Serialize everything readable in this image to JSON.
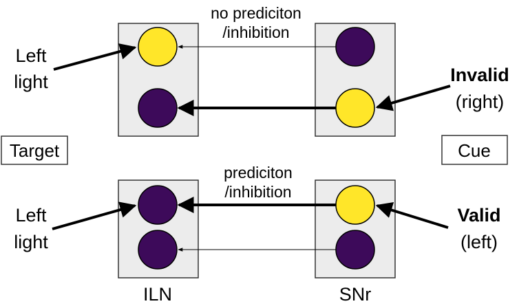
{
  "colors": {
    "on": "#ffe629",
    "off": "#3d0a5a",
    "panel": "#ececec",
    "panel_border": "#333333",
    "ink": "#000000"
  },
  "top": {
    "arrow_label_line1": "no prediciton",
    "arrow_label_line2": "/inhibition",
    "left_label_line1": "Left",
    "left_label_line2": "light",
    "right_label_line1": "Invalid",
    "right_label_line2": "(right)"
  },
  "bottom": {
    "arrow_label_line1": "prediciton",
    "arrow_label_line2": "/inhibition",
    "left_label_line1": "Left",
    "left_label_line2": "light",
    "right_label_line1": "Valid",
    "right_label_line2": "(left)"
  },
  "side_boxes": {
    "left": "Target",
    "right": "Cue"
  },
  "column_labels": {
    "left": "ILN",
    "right": "SNr"
  }
}
